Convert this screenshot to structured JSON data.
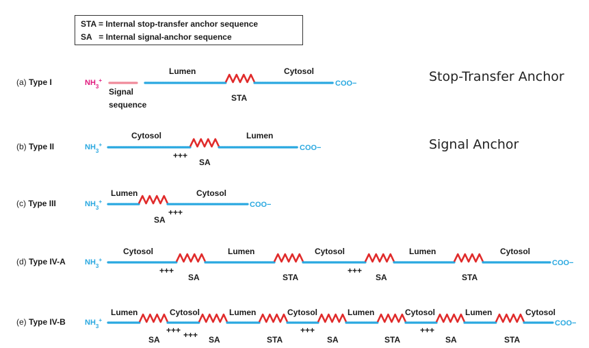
{
  "legend": {
    "line1": "STA = Internal stop-transfer anchor sequence",
    "line2": "SA   = Internal signal-anchor sequence"
  },
  "side_labels": {
    "stop_transfer": "Stop-Transfer Anchor",
    "signal_anchor": "Signal Anchor"
  },
  "colors": {
    "chain": "#29a8e0",
    "helix": "#e02b2b",
    "signal": "#f08a9a",
    "nh3_type1": "#e0197d",
    "terminus": "#29a8e0",
    "text": "#1a1a1a"
  },
  "terminals": {
    "n": "NH3+",
    "c": "COO−"
  },
  "rows": [
    {
      "id": "type-1",
      "letter": "(a)",
      "name": "Type I",
      "segments": [
        "signal-sequence",
        "Lumen",
        "STA",
        "Cytosol"
      ],
      "labels": {
        "lumen": "Lumen",
        "cytosol": "Cytosol",
        "helix": "STA",
        "signal": "Signal",
        "signal2": "sequence"
      }
    },
    {
      "id": "type-2",
      "letter": "(b)",
      "name": "Type II",
      "labels": {
        "cytosol": "Cytosol",
        "lumen": "Lumen",
        "helix": "SA",
        "charge": "+++"
      }
    },
    {
      "id": "type-3",
      "letter": "(c)",
      "name": "Type III",
      "labels": {
        "lumen": "Lumen",
        "cytosol": "Cytosol",
        "helix": "SA",
        "charge": "+++"
      }
    },
    {
      "id": "type-4a",
      "letter": "(d)",
      "name": "Type IV-A",
      "regions": [
        "Cytosol",
        "Lumen",
        "Cytosol",
        "Lumen",
        "Cytosol"
      ],
      "helices": [
        "SA",
        "STA",
        "SA",
        "STA"
      ],
      "charges": [
        "+++",
        "+++"
      ]
    },
    {
      "id": "type-4b",
      "letter": "(e)",
      "name": "Type IV-B",
      "regions": [
        "Lumen",
        "Cytosol",
        "Lumen",
        "Cytosol",
        "Lumen",
        "Cytosol",
        "Lumen",
        "Cytosol"
      ],
      "helices": [
        "SA",
        "SA",
        "STA",
        "SA",
        "STA",
        "SA",
        "STA"
      ],
      "charges": [
        "+++",
        "+++",
        "+++",
        "+++"
      ]
    }
  ]
}
